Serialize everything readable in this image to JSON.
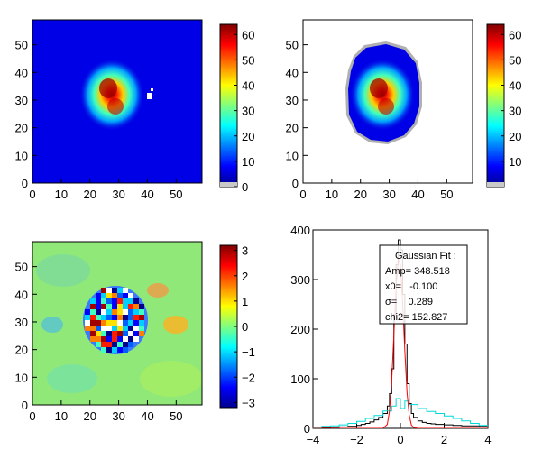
{
  "chart_data": [
    {
      "type": "heatmap",
      "xlim": [
        0,
        59
      ],
      "ylim": [
        0,
        59
      ],
      "x_ticks": [
        "0",
        "10",
        "20",
        "30",
        "40",
        "50"
      ],
      "y_ticks": [
        "0",
        "10",
        "20",
        "30",
        "40",
        "50"
      ],
      "colorbar": {
        "range": [
          0,
          64
        ],
        "ticks": [
          "0",
          "10",
          "20",
          "30",
          "40",
          "50",
          "60"
        ]
      },
      "background_value": 0,
      "features": [
        {
          "kind": "blob",
          "center": [
            27,
            32
          ],
          "peak": 62,
          "sigma": 4.8
        },
        {
          "kind": "saturated_pixels",
          "near": [
            40,
            34
          ]
        }
      ]
    },
    {
      "type": "heatmap",
      "xlim": [
        0,
        59
      ],
      "ylim": [
        0,
        59
      ],
      "x_ticks": [
        "0",
        "10",
        "20",
        "30",
        "40",
        "50"
      ],
      "y_ticks": [
        "0",
        "10",
        "20",
        "30",
        "40",
        "50"
      ],
      "colorbar": {
        "range": [
          0,
          64
        ],
        "ticks": [
          "10",
          "20",
          "30",
          "40",
          "50",
          "60"
        ]
      },
      "masked_outside_region": true,
      "features": [
        {
          "kind": "blob",
          "center": [
            27,
            32
          ],
          "peak": 62,
          "sigma": 4.8
        }
      ]
    },
    {
      "type": "heatmap",
      "xlim": [
        0,
        59
      ],
      "ylim": [
        0,
        59
      ],
      "x_ticks": [
        "0",
        "10",
        "20",
        "30",
        "40",
        "50"
      ],
      "y_ticks": [
        "0",
        "10",
        "20",
        "30",
        "40",
        "50"
      ],
      "colorbar": {
        "range": [
          -3.2,
          3.2
        ],
        "ticks": [
          "-3",
          "-2",
          "-1",
          "0",
          "1",
          "2",
          "3"
        ]
      },
      "features": [
        {
          "kind": "noisy_disk",
          "center": [
            29,
            31
          ],
          "radius": 11
        }
      ]
    },
    {
      "type": "line",
      "xlim": [
        -4,
        4
      ],
      "ylim": [
        0,
        400
      ],
      "x_ticks": [
        "-4",
        "-2",
        "0",
        "2",
        "4"
      ],
      "y_ticks": [
        "0",
        "100",
        "200",
        "300",
        "400"
      ],
      "series": [
        {
          "color": "#000000",
          "style": "histogram",
          "x": [
            -4.0,
            -3.6,
            -3.2,
            -2.8,
            -2.4,
            -2.0,
            -1.8,
            -1.6,
            -1.4,
            -1.2,
            -1.0,
            -0.8,
            -0.6,
            -0.5,
            -0.4,
            -0.3,
            -0.2,
            -0.1,
            0.0,
            0.1,
            0.2,
            0.3,
            0.4,
            0.5,
            0.6,
            0.8,
            1.0,
            1.2,
            1.4,
            1.6,
            2.0,
            2.4,
            2.8,
            3.2,
            3.6,
            4.0
          ],
          "y": [
            0,
            1,
            2,
            3,
            4,
            6,
            8,
            10,
            13,
            17,
            22,
            30,
            45,
            70,
            120,
            230,
            330,
            380,
            360,
            270,
            170,
            90,
            50,
            30,
            22,
            15,
            12,
            10,
            9,
            8,
            7,
            6,
            5,
            5,
            4,
            3
          ]
        },
        {
          "color": "#00d8d8",
          "style": "histogram",
          "x": [
            -4.0,
            -3.6,
            -3.2,
            -2.8,
            -2.4,
            -2.0,
            -1.6,
            -1.2,
            -0.8,
            -0.4,
            -0.2,
            0.0,
            0.2,
            0.4,
            0.8,
            1.2,
            1.6,
            2.0,
            2.4,
            2.8,
            3.2,
            3.6,
            4.0
          ],
          "y": [
            2,
            4,
            5,
            7,
            10,
            14,
            20,
            26,
            35,
            45,
            60,
            40,
            55,
            48,
            40,
            34,
            30,
            25,
            20,
            15,
            10,
            6,
            4
          ]
        },
        {
          "color": "#ff0000",
          "style": "line",
          "name": "Gaussian Fit",
          "x": [
            -4.0,
            -1.0,
            -0.8,
            -0.6,
            -0.5,
            -0.4,
            -0.3,
            -0.2,
            -0.1,
            0.0,
            0.1,
            0.2,
            0.3,
            0.4,
            0.5,
            0.6,
            0.8,
            1.0,
            4.0
          ],
          "y": [
            0,
            0,
            0,
            8,
            35,
            95,
            188,
            283,
            341,
            330,
            254,
            157,
            73,
            27,
            7,
            2,
            0,
            0,
            0
          ]
        }
      ],
      "annotation": {
        "title": "Gaussian Fit :",
        "lines": [
          "Amp= 348.518",
          "x0=   -0.100",
          "σ=    0.289",
          "chi2= 152.827"
        ]
      }
    }
  ]
}
